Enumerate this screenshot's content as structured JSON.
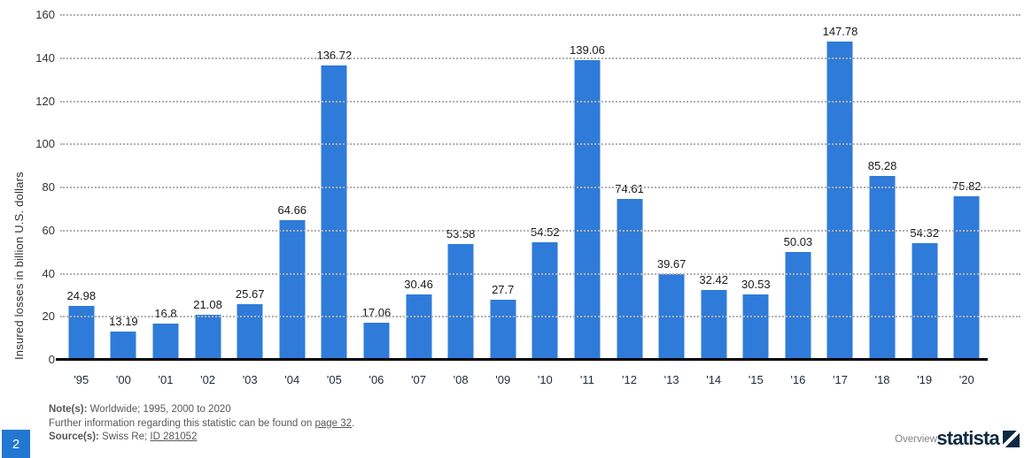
{
  "page": {
    "page_number": "2",
    "overview_label": "Overview",
    "brand": "statista"
  },
  "footer": {
    "notes_label": "Note(s):",
    "notes_text": "Worldwide; 1995, 2000 to 2020",
    "further_text": "Further information regarding this statistic can be found on",
    "further_link": "page 32",
    "further_suffix": ".",
    "source_label": "Source(s):",
    "source_text": "Swiss Re;",
    "source_link": "ID 281052"
  },
  "icons": {
    "statista_mark": "square-with-white-diagonal-slash"
  },
  "colors": {
    "bar": "#2f7bd9",
    "page_badge": "#2277d2",
    "brand_navy": "#0e2a42",
    "grid": "#b0b0b0",
    "axis_line": "#000000"
  },
  "chart_data": {
    "type": "bar",
    "title": "",
    "xlabel": "",
    "ylabel": "Insured losses in billion U.S. dollars",
    "ylim": [
      0,
      160
    ],
    "yticks": [
      0,
      20,
      40,
      60,
      80,
      100,
      120,
      140,
      160
    ],
    "grid": "horizontal dotted gridlines at every 20; solid black x-axis baseline",
    "legend": "none",
    "value_labels_shown": true,
    "bar_color": "#2f7bd9",
    "categories": [
      "'95",
      "'00",
      "'01",
      "'02",
      "'03",
      "'04",
      "'05",
      "'06",
      "'07",
      "'08",
      "'09",
      "'10",
      "'11",
      "'12",
      "'13",
      "'14",
      "'15",
      "'16",
      "'17",
      "'18",
      "'19",
      "'20"
    ],
    "values": [
      24.98,
      13.19,
      16.8,
      21.08,
      25.67,
      64.66,
      136.72,
      17.06,
      30.46,
      53.58,
      27.7,
      54.52,
      139.06,
      74.61,
      39.67,
      32.42,
      30.53,
      50.03,
      147.78,
      85.28,
      54.32,
      75.82
    ],
    "value_labels": [
      "24.98",
      "13.19",
      "16.8",
      "21.08",
      "25.67",
      "64.66",
      "136.72",
      "17.06",
      "30.46",
      "53.58",
      "27.7",
      "54.52",
      "139.06",
      "74.61",
      "39.67",
      "32.42",
      "30.53",
      "50.03",
      "147.78",
      "85.28",
      "54.32",
      "75.82"
    ]
  }
}
